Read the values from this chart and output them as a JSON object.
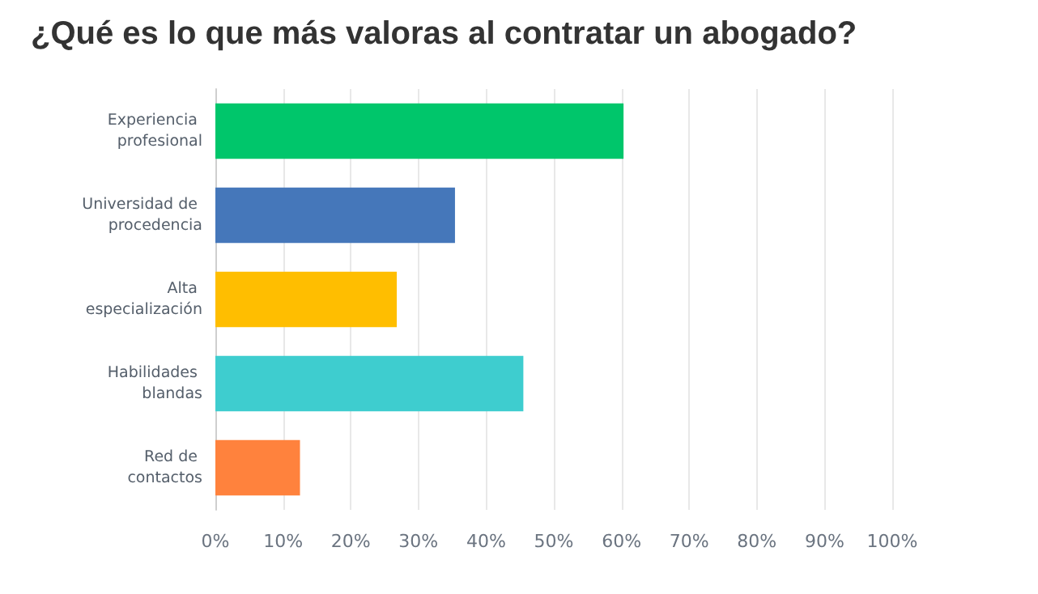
{
  "chart_data": {
    "type": "bar",
    "orientation": "horizontal",
    "title": "¿Qué es lo que más valoras al contratar un abogado?",
    "categories": [
      "Experiencia profesional",
      "Universidad de procedencia",
      "Alta especialización",
      "Habilidades blandas",
      "Red de contactos"
    ],
    "values": [
      60.3,
      35.4,
      26.8,
      45.5,
      12.5
    ],
    "colors": [
      "#00c66b",
      "#4577ba",
      "#ffbe00",
      "#3ecdcf",
      "#ff823d"
    ],
    "xlim": [
      0,
      100
    ],
    "xticks": [
      {
        "value": 0,
        "label": "0%"
      },
      {
        "value": 10,
        "label": "10%"
      },
      {
        "value": 20,
        "label": "20%"
      },
      {
        "value": 30,
        "label": "30%"
      },
      {
        "value": 40,
        "label": "40%"
      },
      {
        "value": 50,
        "label": "50%"
      },
      {
        "value": 60,
        "label": "60%"
      },
      {
        "value": 70,
        "label": "70%"
      },
      {
        "value": 80,
        "label": "80%"
      },
      {
        "value": 90,
        "label": "90%"
      },
      {
        "value": 100,
        "label": "100%"
      }
    ],
    "grid": "x"
  }
}
